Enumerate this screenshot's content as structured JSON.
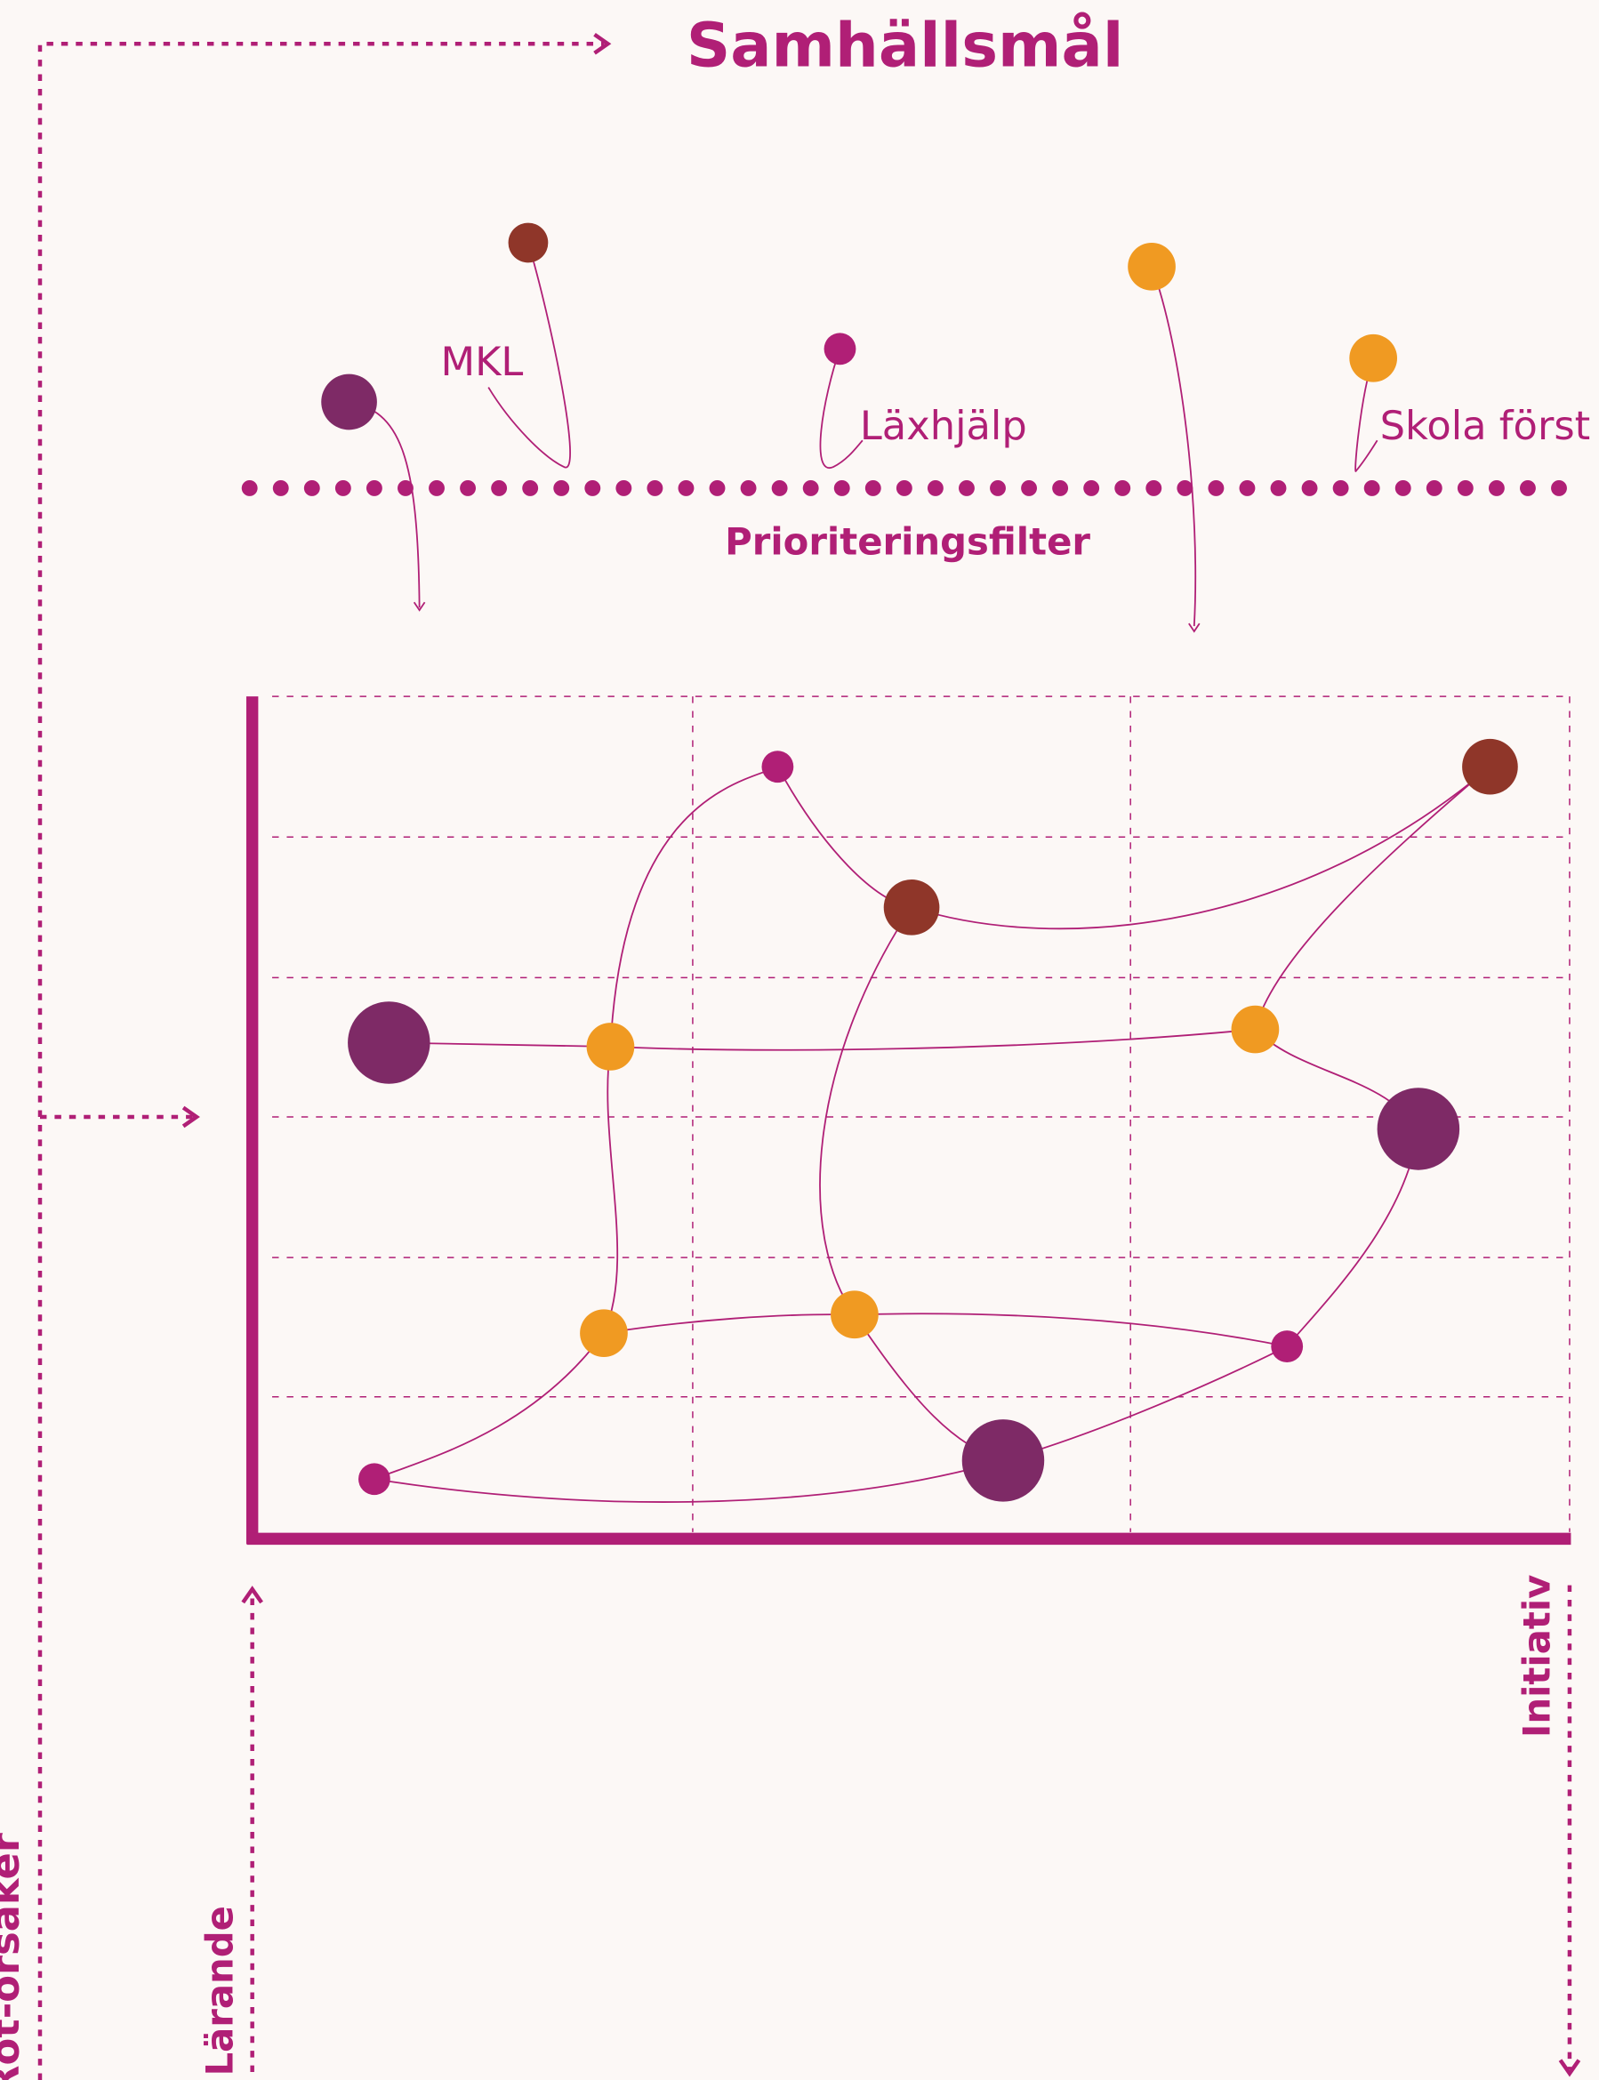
{
  "title": "Samhällsmål",
  "labels": [
    "MKL",
    "Läxhjälp",
    "Skola först"
  ],
  "filter": "Prioriteringsfilter",
  "axes": {
    "x": "Initiativ",
    "y": "Lärande",
    "outer": "Rot-orsaker"
  }
}
